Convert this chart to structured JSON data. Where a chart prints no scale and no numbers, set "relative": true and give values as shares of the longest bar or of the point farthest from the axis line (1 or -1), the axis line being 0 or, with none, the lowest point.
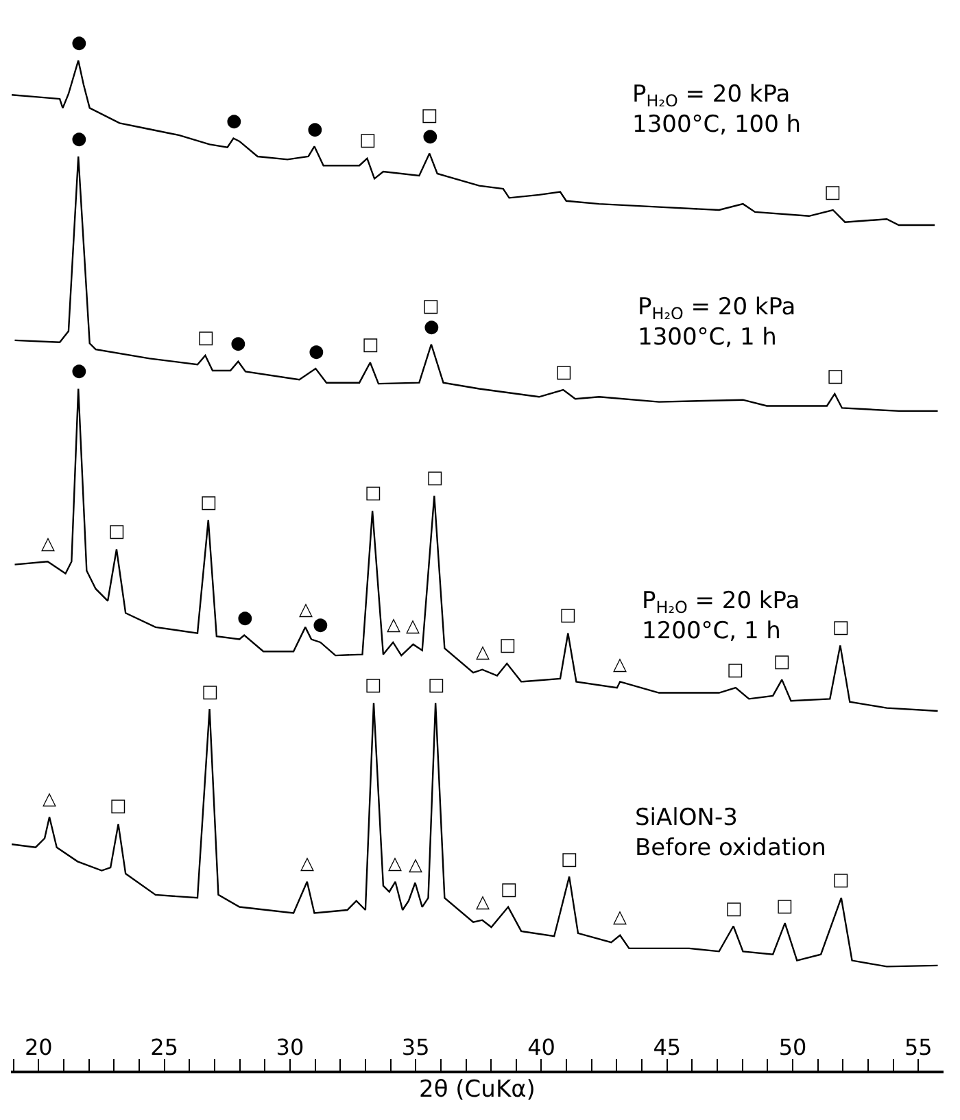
{
  "chart_data": {
    "type": "line",
    "relative": true,
    "xlabel": "2θ (CuKα)",
    "xlim": [
      18.9,
      56
    ],
    "xticks": [
      {
        "value": 19,
        "label": null
      },
      20,
      {
        "value": 21,
        "label": null
      },
      {
        "value": 22,
        "label": null
      },
      {
        "value": 23,
        "label": null
      },
      {
        "value": 24,
        "label": null
      },
      25,
      {
        "value": 26,
        "label": null
      },
      {
        "value": 27,
        "label": null
      },
      {
        "value": 28,
        "label": null
      },
      {
        "value": 29,
        "label": null
      },
      30,
      {
        "value": 31,
        "label": null
      },
      {
        "value": 32,
        "label": null
      },
      {
        "value": 33,
        "label": null
      },
      {
        "value": 34,
        "label": null
      },
      35,
      {
        "value": 36,
        "label": null
      },
      {
        "value": 37,
        "label": null
      },
      {
        "value": 38,
        "label": null
      },
      {
        "value": 39,
        "label": null
      },
      40,
      {
        "value": 41,
        "label": null
      },
      {
        "value": 42,
        "label": null
      },
      {
        "value": 43,
        "label": null
      },
      {
        "value": 44,
        "label": null
      },
      45,
      {
        "value": 46,
        "label": null
      },
      {
        "value": 47,
        "label": null
      },
      {
        "value": 48,
        "label": null
      },
      {
        "value": 49,
        "label": null
      },
      50,
      {
        "value": 51,
        "label": null
      },
      {
        "value": 52,
        "label": null
      },
      {
        "value": 53,
        "label": null
      },
      {
        "value": 54,
        "label": null
      },
      55
    ],
    "series": [
      {
        "name": "P$_{H₂O}$ = 20 kPa\n1300°C, 100 h",
        "color": "#000000",
        "x": [
          18.93,
          19.88,
          20.84,
          20.96,
          21.19,
          21.58,
          21.79,
          22.03,
          23.22,
          24.41,
          25.6,
          26.8,
          27.51,
          27.75,
          27.99,
          28.71,
          29.9,
          30.73,
          30.97,
          31.33,
          32.76,
          33.07,
          33.36,
          33.71,
          35.14,
          35.55,
          35.86,
          37.53,
          38.48,
          38.72,
          39.91,
          40.75,
          40.99,
          42.3,
          44.68,
          47.07,
          48.02,
          48.5,
          50.65,
          51.6,
          52.08,
          53.74,
          54.22,
          55.65
        ],
        "values": [
          0.966,
          0.964,
          0.962,
          0.953,
          0.967,
          1.0,
          0.976,
          0.953,
          0.938,
          0.932,
          0.926,
          0.917,
          0.914,
          0.923,
          0.92,
          0.905,
          0.902,
          0.905,
          0.915,
          0.896,
          0.896,
          0.903,
          0.883,
          0.89,
          0.886,
          0.908,
          0.888,
          0.876,
          0.873,
          0.864,
          0.867,
          0.87,
          0.861,
          0.858,
          0.855,
          0.852,
          0.858,
          0.85,
          0.846,
          0.852,
          0.84,
          0.843,
          0.837,
          0.837
        ]
      },
      {
        "name": "P$_{H₂O}$ = 20 kPa\n1300°C, 1 h",
        "color": "#000000",
        "x": [
          19.05,
          20.84,
          21.19,
          21.58,
          22.03,
          22.27,
          24.41,
          26.32,
          26.63,
          26.92,
          27.63,
          27.94,
          28.23,
          30.37,
          31.02,
          31.45,
          32.76,
          33.19,
          33.52,
          35.14,
          35.62,
          36.1,
          37.53,
          39.91,
          40.87,
          41.35,
          42.3,
          44.68,
          48.02,
          48.97,
          51.36,
          51.67,
          51.96,
          54.22,
          55.77
        ],
        "values": [
          0.723,
          0.721,
          0.732,
          0.905,
          0.72,
          0.714,
          0.705,
          0.699,
          0.708,
          0.693,
          0.693,
          0.702,
          0.692,
          0.684,
          0.695,
          0.681,
          0.681,
          0.701,
          0.68,
          0.681,
          0.719,
          0.681,
          0.675,
          0.667,
          0.674,
          0.665,
          0.667,
          0.662,
          0.664,
          0.658,
          0.658,
          0.67,
          0.656,
          0.653,
          0.653
        ]
      },
      {
        "name": "P$_{H₂O}$ = 20 kPa\n1200°C, 1 h",
        "color": "#000000",
        "x": [
          19.05,
          20.36,
          21.07,
          21.31,
          21.58,
          21.91,
          22.27,
          22.75,
          23.1,
          23.46,
          24.65,
          26.32,
          26.75,
          27.08,
          27.99,
          28.18,
          28.94,
          30.14,
          30.61,
          30.85,
          31.21,
          31.81,
          32.88,
          33.28,
          33.71,
          34.1,
          34.43,
          34.9,
          35.26,
          35.74,
          36.15,
          37.29,
          37.65,
          38.24,
          38.63,
          39.2,
          40.75,
          41.06,
          41.39,
          43.01,
          43.13,
          44.68,
          47.07,
          47.73,
          48.26,
          49.21,
          49.57,
          49.93,
          51.48,
          51.89,
          52.27,
          53.74,
          55.77
        ],
        "values": [
          0.501,
          0.504,
          0.492,
          0.504,
          0.675,
          0.495,
          0.477,
          0.465,
          0.516,
          0.453,
          0.439,
          0.433,
          0.545,
          0.43,
          0.427,
          0.431,
          0.415,
          0.415,
          0.439,
          0.427,
          0.424,
          0.411,
          0.412,
          0.554,
          0.412,
          0.424,
          0.411,
          0.422,
          0.416,
          0.569,
          0.418,
          0.394,
          0.397,
          0.391,
          0.403,
          0.385,
          0.388,
          0.433,
          0.385,
          0.379,
          0.385,
          0.374,
          0.374,
          0.379,
          0.368,
          0.371,
          0.387,
          0.366,
          0.368,
          0.421,
          0.365,
          0.359,
          0.356
        ]
      },
      {
        "name": "SiAlON-3\nBefore oxidation",
        "color": "#000000",
        "x": [
          18.93,
          19.88,
          20.24,
          20.43,
          20.72,
          21.55,
          22.51,
          22.86,
          23.17,
          23.46,
          24.65,
          26.32,
          26.8,
          27.15,
          27.99,
          30.14,
          30.68,
          30.97,
          32.28,
          32.64,
          33.0,
          33.33,
          33.71,
          33.95,
          34.19,
          34.48,
          34.72,
          34.98,
          35.26,
          35.5,
          35.79,
          36.15,
          37.29,
          37.65,
          38.01,
          38.68,
          39.2,
          40.51,
          41.11,
          41.46,
          42.78,
          43.13,
          43.49,
          45.88,
          47.07,
          47.64,
          48.02,
          49.21,
          49.69,
          50.17,
          51.12,
          51.93,
          52.36,
          53.74,
          55.77
        ],
        "values": [
          0.224,
          0.221,
          0.23,
          0.251,
          0.221,
          0.207,
          0.198,
          0.201,
          0.244,
          0.195,
          0.174,
          0.171,
          0.358,
          0.174,
          0.162,
          0.156,
          0.187,
          0.156,
          0.159,
          0.168,
          0.159,
          0.364,
          0.183,
          0.177,
          0.187,
          0.159,
          0.168,
          0.186,
          0.162,
          0.171,
          0.364,
          0.171,
          0.147,
          0.149,
          0.142,
          0.162,
          0.138,
          0.133,
          0.192,
          0.136,
          0.127,
          0.134,
          0.121,
          0.121,
          0.118,
          0.143,
          0.118,
          0.115,
          0.146,
          0.109,
          0.115,
          0.171,
          0.109,
          0.103,
          0.104
        ]
      }
    ],
    "annotations": [
      {
        "text": "●",
        "x": 21.58,
        "y": 1.0
      },
      {
        "text": "●",
        "x": 27.75,
        "y": 0.923
      },
      {
        "text": "●",
        "x": 30.97,
        "y": 0.915
      },
      {
        "text": "□",
        "x": 33.07,
        "y": 0.903
      },
      {
        "text": "●",
        "x": 35.55,
        "y": 0.908
      },
      {
        "text": "□",
        "x": 35.55,
        "y": 0.908
      },
      {
        "text": "□",
        "x": 51.6,
        "y": 0.852
      },
      {
        "text": "●",
        "x": 21.58,
        "y": 0.905
      },
      {
        "text": "□",
        "x": 26.63,
        "y": 0.708
      },
      {
        "text": "●",
        "x": 27.94,
        "y": 0.702
      },
      {
        "text": "●",
        "x": 31.02,
        "y": 0.695
      },
      {
        "text": "□",
        "x": 33.19,
        "y": 0.701
      },
      {
        "text": "●",
        "x": 35.62,
        "y": 0.719
      },
      {
        "text": "□",
        "x": 35.62,
        "y": 0.719
      },
      {
        "text": "□",
        "x": 40.87,
        "y": 0.674
      },
      {
        "text": "□",
        "x": 51.67,
        "y": 0.67
      },
      {
        "text": "●",
        "x": 21.58,
        "y": 0.675
      },
      {
        "text": "△",
        "x": 20.36,
        "y": 0.504
      },
      {
        "text": "□",
        "x": 23.1,
        "y": 0.516
      },
      {
        "text": "□",
        "x": 26.75,
        "y": 0.545
      },
      {
        "text": "●",
        "x": 28.18,
        "y": 0.431
      },
      {
        "text": "△",
        "x": 30.61,
        "y": 0.439
      },
      {
        "text": "●",
        "x": 31.21,
        "y": 0.424
      },
      {
        "text": "□",
        "x": 33.28,
        "y": 0.554
      },
      {
        "text": "△",
        "x": 34.1,
        "y": 0.424
      },
      {
        "text": "△",
        "x": 34.9,
        "y": 0.422
      },
      {
        "text": "□",
        "x": 35.74,
        "y": 0.569
      },
      {
        "text": "△",
        "x": 37.65,
        "y": 0.397
      },
      {
        "text": "□",
        "x": 38.63,
        "y": 0.403
      },
      {
        "text": "□",
        "x": 41.06,
        "y": 0.433
      },
      {
        "text": "△",
        "x": 43.13,
        "y": 0.385
      },
      {
        "text": "□",
        "x": 47.73,
        "y": 0.379
      },
      {
        "text": "□",
        "x": 49.57,
        "y": 0.387
      },
      {
        "text": "□",
        "x": 51.89,
        "y": 0.421
      },
      {
        "text": "□",
        "x": 26.8,
        "y": 0.358
      },
      {
        "text": "□",
        "x": 33.33,
        "y": 0.364
      },
      {
        "text": "□",
        "x": 35.79,
        "y": 0.364
      },
      {
        "text": "△",
        "x": 20.43,
        "y": 0.251
      },
      {
        "text": "□",
        "x": 23.17,
        "y": 0.244
      },
      {
        "text": "△",
        "x": 30.68,
        "y": 0.187
      },
      {
        "text": "△",
        "x": 34.19,
        "y": 0.187
      },
      {
        "text": "△",
        "x": 34.98,
        "y": 0.186
      },
      {
        "text": "△",
        "x": 37.65,
        "y": 0.149
      },
      {
        "text": "□",
        "x": 38.68,
        "y": 0.162
      },
      {
        "text": "□",
        "x": 41.11,
        "y": 0.192
      },
      {
        "text": "△",
        "x": 43.13,
        "y": 0.134
      },
      {
        "text": "□",
        "x": 47.64,
        "y": 0.143
      },
      {
        "text": "□",
        "x": 49.69,
        "y": 0.146
      },
      {
        "text": "□",
        "x": 51.93,
        "y": 0.171
      }
    ]
  }
}
